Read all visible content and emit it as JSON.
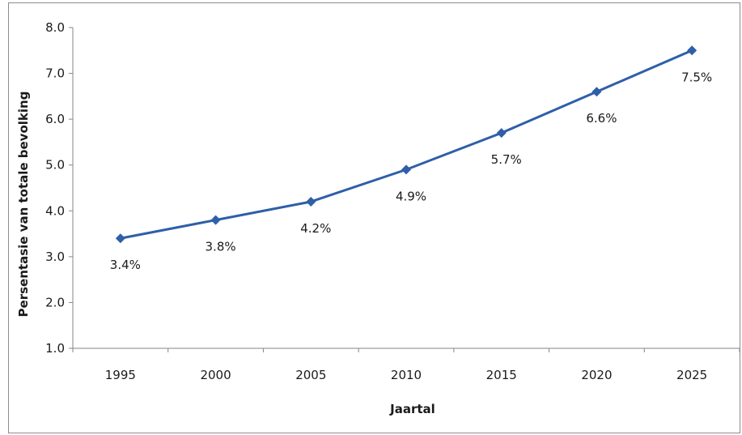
{
  "chart_data": {
    "type": "line",
    "title": "",
    "xlabel": "Jaartal",
    "ylabel": "Persentasie van totale bevolking",
    "categories": [
      "1995",
      "2000",
      "2005",
      "2010",
      "2015",
      "2020",
      "2025"
    ],
    "series": [
      {
        "values": [
          3.4,
          3.8,
          4.2,
          4.9,
          5.7,
          6.6,
          7.5
        ],
        "data_labels": [
          "3.4%",
          "3.8%",
          "4.2%",
          "4.9%",
          "5.7%",
          "6.6%",
          "7.5%"
        ],
        "color": "#2e5fa8",
        "marker": "diamond"
      }
    ],
    "ylim": [
      1.0,
      8.0
    ],
    "y_ticks": [
      "1.0",
      "2.0",
      "3.0",
      "4.0",
      "5.0",
      "6.0",
      "7.0",
      "8.0"
    ],
    "grid": false,
    "legend": "none",
    "axis_color": "#868686"
  }
}
